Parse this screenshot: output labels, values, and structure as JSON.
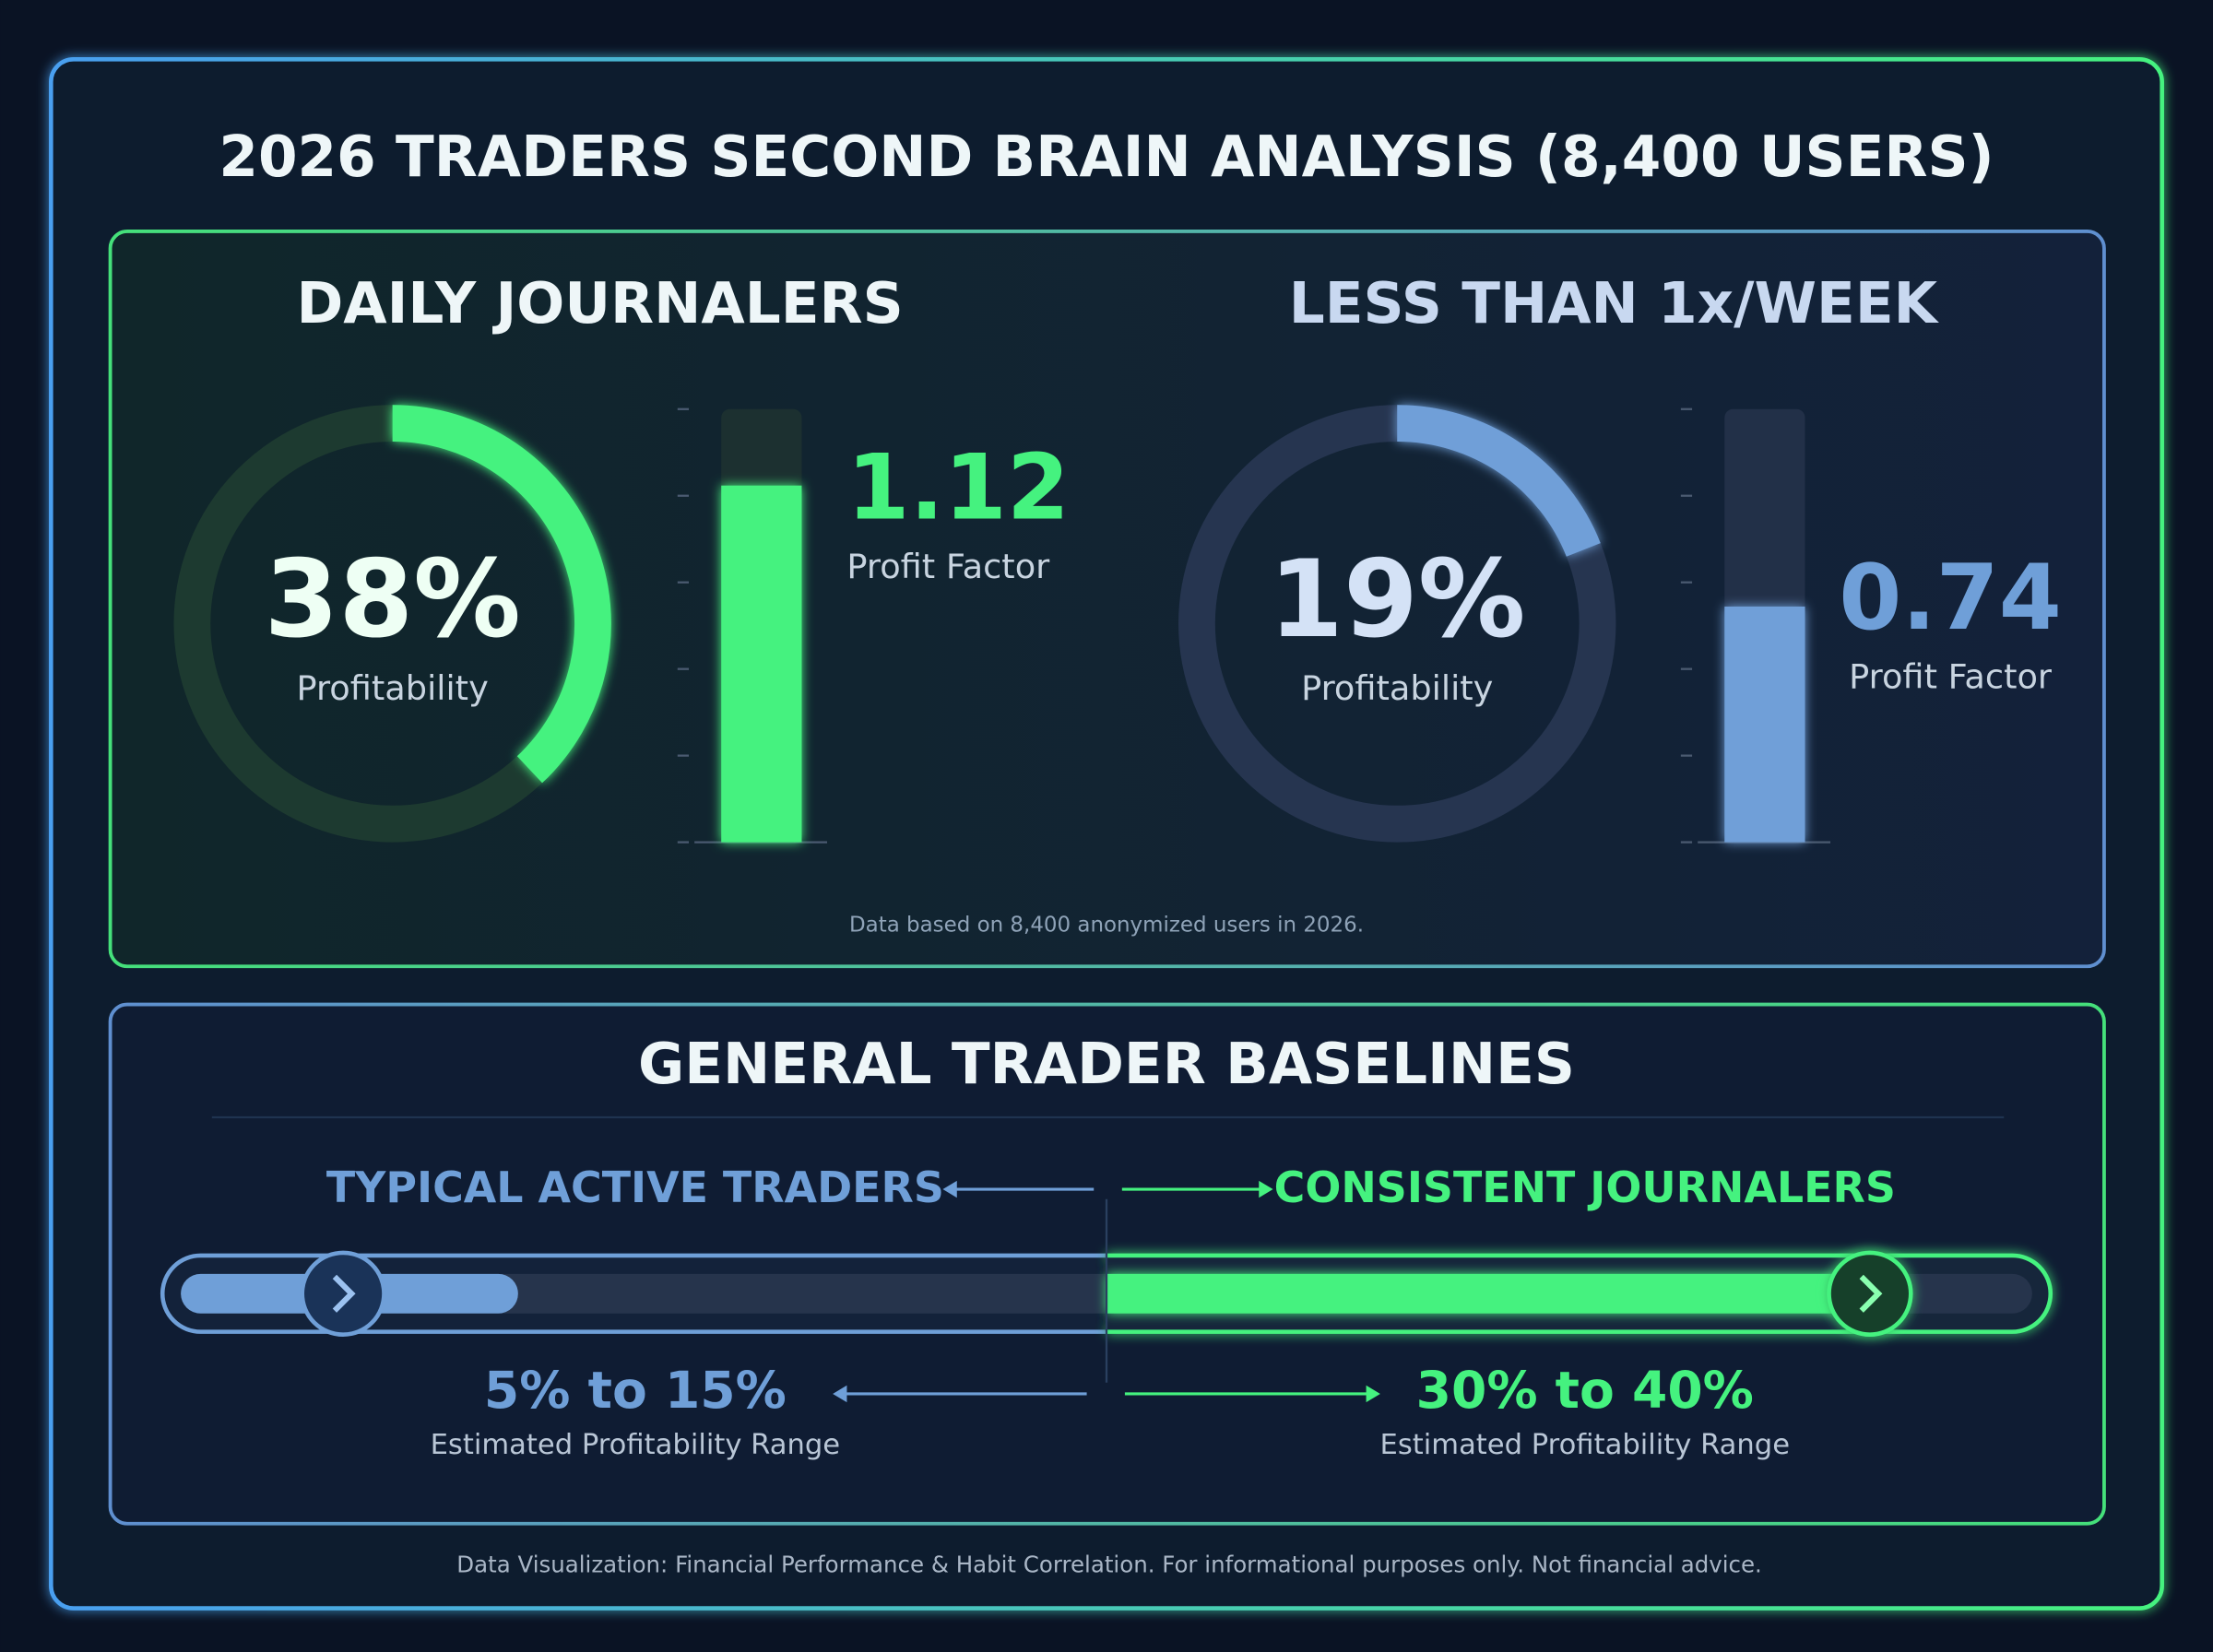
{
  "title": "2026 TRADERS SECOND BRAIN ANALYSIS (8,400 USERS)",
  "groups": [
    {
      "heading": "DAILY JOURNALERS",
      "color": "#45f27f",
      "profitability": {
        "value": 38,
        "label": "38%"
      },
      "profitability_caption": "Profitability",
      "profit_factor": 1.12,
      "profit_factor_caption": "Profit Factor"
    },
    {
      "heading": "LESS THAN 1x/WEEK",
      "color": "#6f9fd8",
      "profitability": {
        "value": 19,
        "label": "19%"
      },
      "profitability_caption": "Profitability",
      "profit_factor": 0.74,
      "profit_factor_caption": "Profit Factor"
    }
  ],
  "bar_ylim": [
    0,
    1.36
  ],
  "bar_yticks": [
    0,
    0.272,
    0.544,
    0.816,
    1.088,
    1.36
  ],
  "note": "Data based on 8,400 anonymized users in 2026.",
  "baselines": {
    "heading": "GENERAL TRADER BASELINES",
    "left": {
      "name": "TYPICAL ACTIVE TRADERS",
      "range_label": "5% to 15%",
      "caption": "Estimated Profitability Range"
    },
    "right": {
      "name": "CONSISTENT JOURNALERS",
      "range_label": "30% to 40%",
      "caption": "Estimated Profitability Range"
    }
  },
  "footer": "Data Visualization: Financial Performance & Habit Correlation. For informational purposes only. Not financial advice."
}
